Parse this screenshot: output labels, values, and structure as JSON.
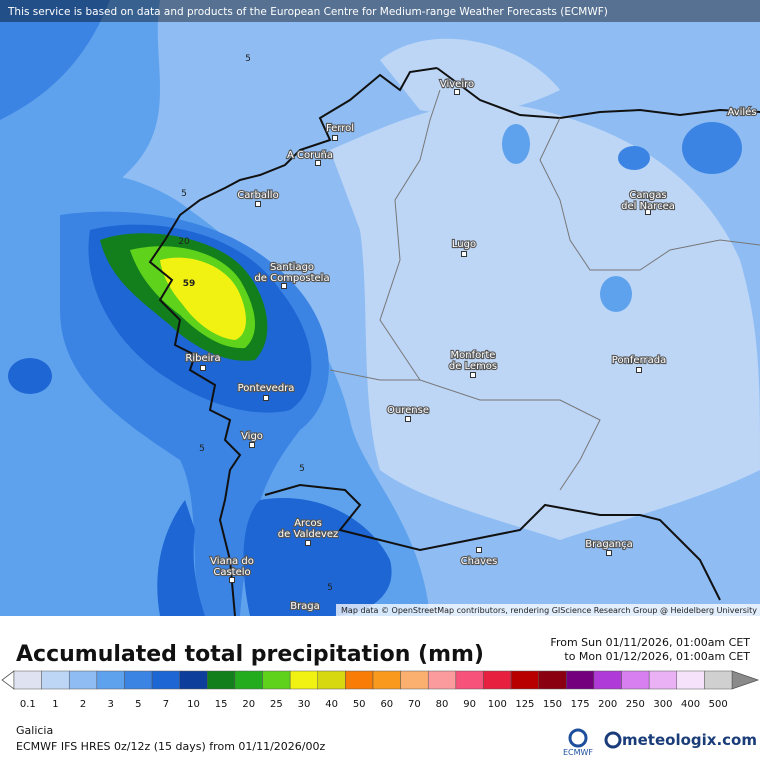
{
  "header": {
    "notice": "This service is based on data and products of the European Centre for Medium-range Weather Forecasts (ECMWF)"
  },
  "map": {
    "cities": [
      {
        "lines": [
          "Viveiro"
        ]
      },
      {
        "lines": [
          "Avilés"
        ]
      },
      {
        "lines": [
          "Ferrol"
        ]
      },
      {
        "lines": [
          "A Coruña"
        ]
      },
      {
        "lines": [
          "Carballo"
        ]
      },
      {
        "lines": [
          "Cangas",
          "del Narcea"
        ]
      },
      {
        "lines": [
          "Lugo"
        ]
      },
      {
        "lines": [
          "Santiago",
          "de Compostela"
        ]
      },
      {
        "lines": [
          "Ribeira"
        ]
      },
      {
        "lines": [
          "Monforte",
          "de Lemos"
        ]
      },
      {
        "lines": [
          "Ponferrada"
        ]
      },
      {
        "lines": [
          "Pontevedra"
        ]
      },
      {
        "lines": [
          "Ourense"
        ]
      },
      {
        "lines": [
          "Vigo"
        ]
      },
      {
        "lines": [
          "Arcos",
          "de Valdevez"
        ]
      },
      {
        "lines": [
          "Viana do",
          "Castelo"
        ]
      },
      {
        "lines": [
          "Chaves"
        ]
      },
      {
        "lines": [
          "Bragança"
        ]
      },
      {
        "lines": [
          "Braga"
        ]
      }
    ],
    "contour_labels": [
      5,
      5,
      20,
      59,
      5,
      5,
      5
    ],
    "attribution": "Map data © OpenStreetMap contributors, rendering GIScience Research Group @ Heidelberg University"
  },
  "legend": {
    "title": "Accumulated total precipitation (mm)",
    "from": "From Sun 01/11/2026, 01:00am CET",
    "to": "to Mon 01/12/2026, 01:00am CET",
    "levels": [
      0.1,
      1,
      2,
      3,
      5,
      7,
      10,
      15,
      20,
      25,
      30,
      40,
      50,
      60,
      70,
      80,
      90,
      100,
      125,
      150,
      175,
      200,
      250,
      300,
      400,
      500
    ],
    "colors": [
      "#dfe3f1",
      "#bdd6f6",
      "#8fbdf3",
      "#5ea2ee",
      "#3b84e4",
      "#1d66d4",
      "#0d3e9c",
      "#127f1c",
      "#23ad1e",
      "#5fd21c",
      "#f2f212",
      "#d8d810",
      "#f97c06",
      "#f99a1e",
      "#fbb070",
      "#fb9b9e",
      "#f7527a",
      "#e8203f",
      "#b80000",
      "#8a0010",
      "#74007e",
      "#b03ad7",
      "#d77ef0",
      "#eab1f5",
      "#f6e3fb",
      "#d0d0d0"
    ]
  },
  "footer": {
    "region": "Galicia",
    "model": "ECMWF IFS HRES 0z/12z (15 days) from  01/11/2026/00z",
    "ecmwf": "ECMWF",
    "brand": "meteologix.com"
  }
}
